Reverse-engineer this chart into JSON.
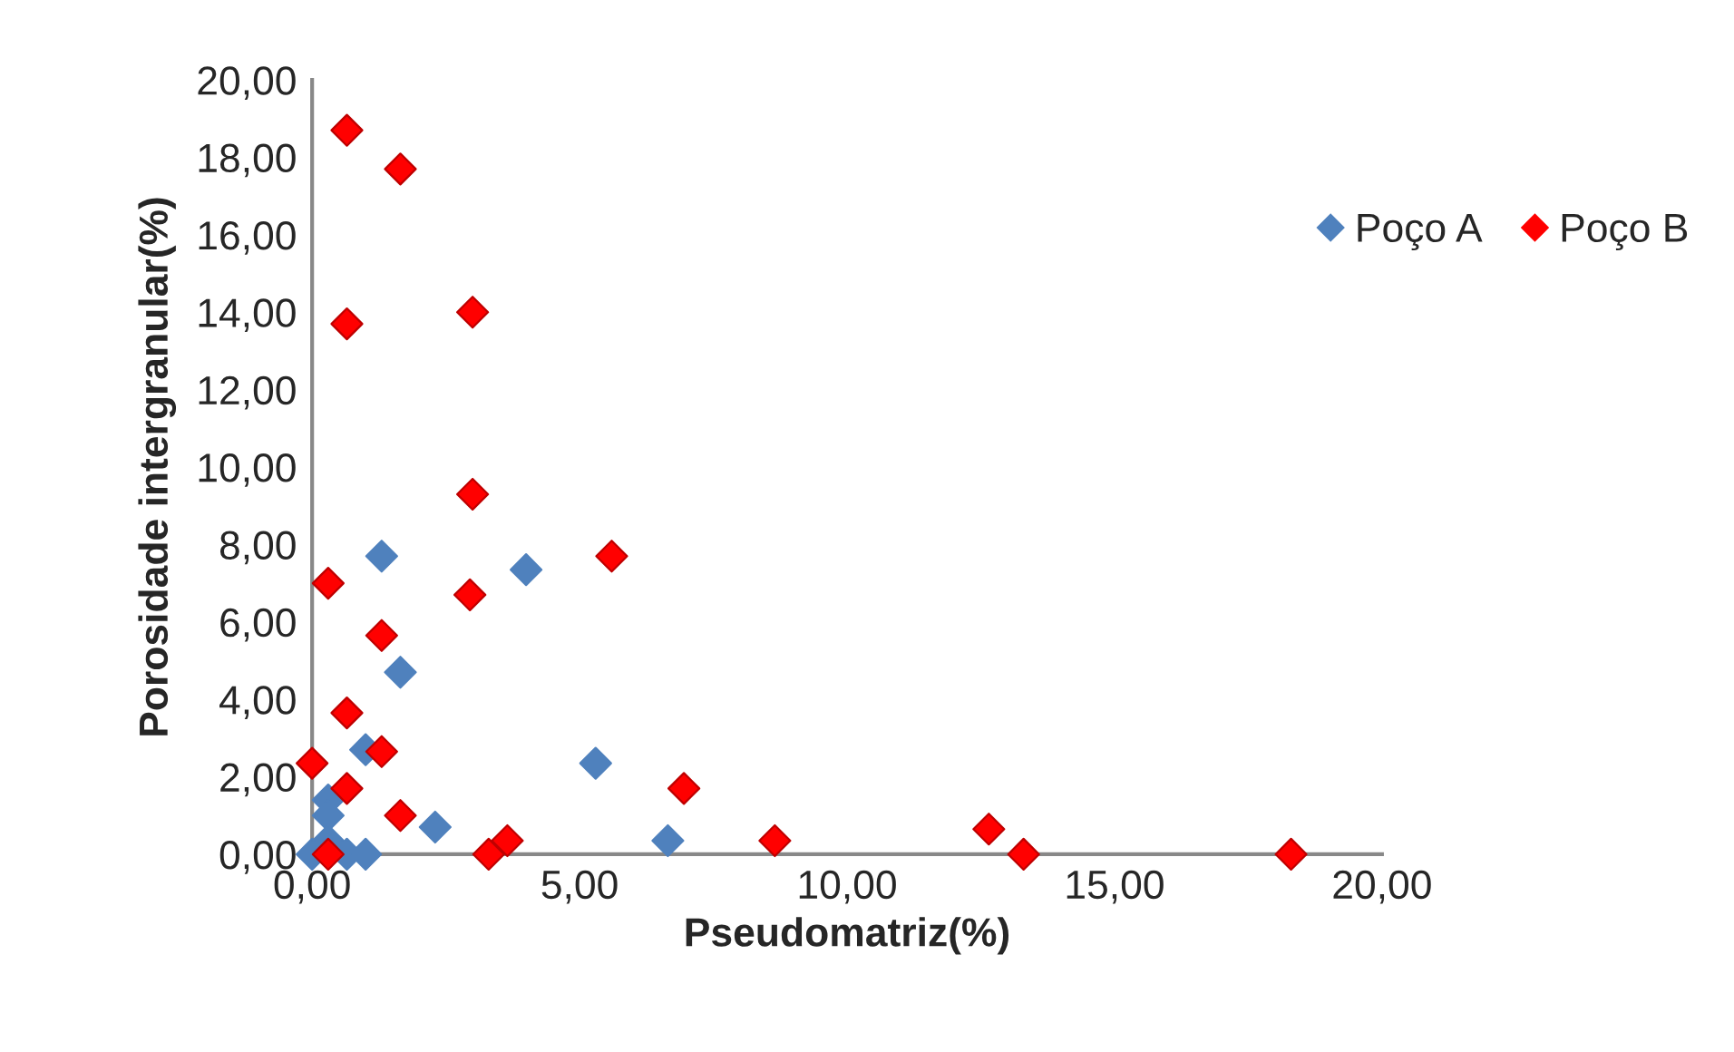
{
  "chart_data": {
    "type": "scatter",
    "xlabel": "Pseudomatriz(%)",
    "ylabel": "Porosidade intergranular(%)",
    "xlim": [
      0,
      20
    ],
    "ylim": [
      0,
      20
    ],
    "xticks": [
      {
        "value": 0,
        "label": "0,00"
      },
      {
        "value": 5,
        "label": "5,00"
      },
      {
        "value": 10,
        "label": "10,00"
      },
      {
        "value": 15,
        "label": "15,00"
      },
      {
        "value": 20,
        "label": "20,00"
      }
    ],
    "yticks": [
      {
        "value": 0,
        "label": "0,00"
      },
      {
        "value": 2,
        "label": "2,00"
      },
      {
        "value": 4,
        "label": "4,00"
      },
      {
        "value": 6,
        "label": "6,00"
      },
      {
        "value": 8,
        "label": "8,00"
      },
      {
        "value": 10,
        "label": "10,00"
      },
      {
        "value": 12,
        "label": "12,00"
      },
      {
        "value": 14,
        "label": "14,00"
      },
      {
        "value": 16,
        "label": "16,00"
      },
      {
        "value": 18,
        "label": "18,00"
      },
      {
        "value": 20,
        "label": "20,00"
      }
    ],
    "marker": "diamond",
    "grid": false,
    "legend": "right",
    "series": [
      {
        "name": "Poço A",
        "color": "#4f81bd",
        "x": [
          0,
          0.3,
          0.3,
          0.3,
          0.65,
          1.0,
          1.0,
          1.3,
          1.65,
          2.3,
          4.0,
          5.3,
          6.65
        ],
        "values": [
          0,
          1.4,
          1.0,
          0.35,
          0,
          0,
          2.7,
          7.7,
          4.7,
          0.7,
          7.35,
          2.35,
          0.35
        ]
      },
      {
        "name": "Poço B",
        "color": "#ff0000",
        "x": [
          0.65,
          1.65,
          0.65,
          3.0,
          3.0,
          5.6,
          0.3,
          2.95,
          1.3,
          0.65,
          1.3,
          0,
          6.95,
          0.65,
          1.65,
          3.65,
          3.3,
          0.3,
          8.65,
          12.65,
          13.3,
          18.3
        ],
        "values": [
          18.7,
          17.7,
          13.7,
          14.0,
          9.3,
          7.7,
          7.0,
          6.7,
          5.65,
          3.65,
          2.65,
          2.35,
          1.7,
          1.7,
          1.0,
          0.35,
          0,
          0,
          0.35,
          0.65,
          0,
          0
        ]
      }
    ]
  }
}
